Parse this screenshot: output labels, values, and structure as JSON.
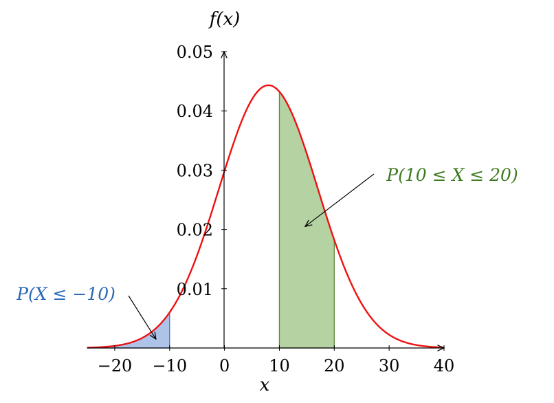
{
  "chart_data": {
    "type": "area",
    "title": "",
    "xlabel": "x",
    "ylabel": "f(x)",
    "xlim": [
      -25,
      40
    ],
    "ylim": [
      0,
      0.05
    ],
    "xticks": [
      -20,
      -10,
      0,
      10,
      20,
      30,
      40
    ],
    "xtick_labels": [
      "−20",
      "−10",
      "0",
      "10",
      "20",
      "30",
      "40"
    ],
    "yticks": [
      0.01,
      0.02,
      0.03,
      0.04,
      0.05
    ],
    "ytick_labels": [
      "0.01",
      "0.02",
      "0.03",
      "0.04",
      "0.05"
    ],
    "grid": false,
    "curve": {
      "kind": "normal-density",
      "mean": 8,
      "sd": 9,
      "x_range": [
        -25,
        40
      ],
      "color": "#ee1111"
    },
    "shaded_regions": [
      {
        "label": "P(X ≤ −10)",
        "x_range": [
          -25,
          -10
        ],
        "fill": "#aec3e8",
        "stroke": "#4a6fc0",
        "label_color": "#2a6ab8",
        "label_position": "left",
        "arrow_target": [
          -12.5,
          0.0015
        ]
      },
      {
        "label": "P(10 ≤ X ≤ 20)",
        "x_range": [
          10,
          20
        ],
        "fill": "#b5d2a2",
        "stroke": "#5a8a3a",
        "label_color": "#3d7a1e",
        "label_position": "upper-right",
        "arrow_target": [
          14.7,
          0.0205
        ]
      }
    ]
  }
}
